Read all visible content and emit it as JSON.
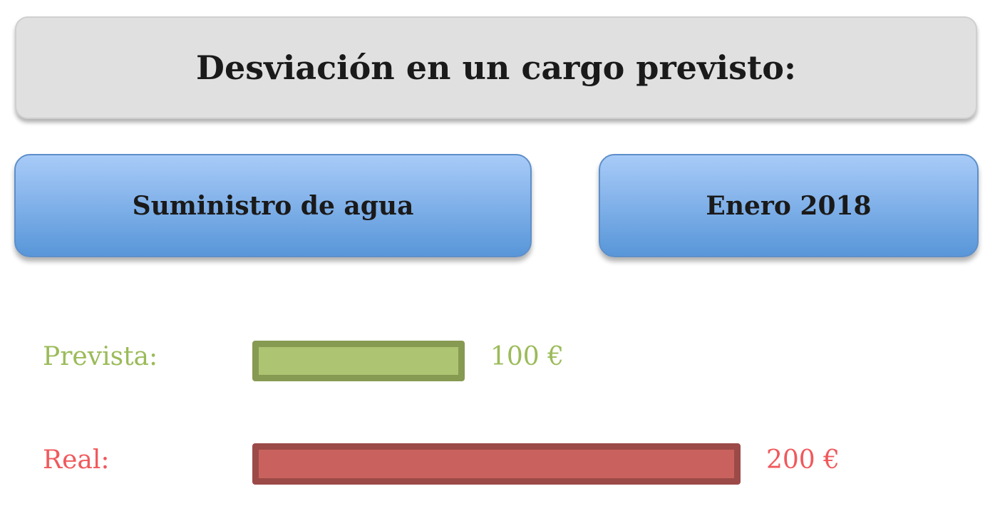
{
  "title": "Desviación en un cargo previsto:",
  "concept": "Suministro de agua",
  "period": "Enero 2018",
  "rows": [
    {
      "label": "Prevista:",
      "value": 100,
      "value_label": "100 €",
      "text_color": "#9bbb59",
      "fill": "#adc472",
      "border": "#879a52"
    },
    {
      "label": "Real:",
      "value": 200,
      "value_label": "200 €",
      "text_color": "#f0595c",
      "fill": "#c9625e",
      "border": "#9c4a48"
    }
  ]
}
